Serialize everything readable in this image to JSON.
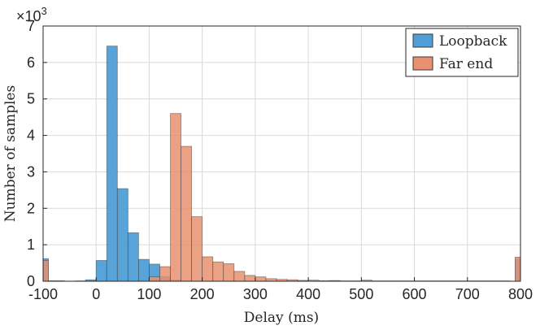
{
  "chart_data": {
    "type": "bar",
    "xlabel": "Delay (ms)",
    "ylabel": "Number of samples",
    "exponent_label": "×10",
    "exponent_power": "3",
    "xlim": [
      -100,
      800
    ],
    "ylim": [
      0,
      7
    ],
    "y_scale_factor": 1000,
    "xticks": [
      "-100",
      "0",
      "100",
      "200",
      "300",
      "400",
      "500",
      "600",
      "700",
      "800"
    ],
    "yticks": [
      "0",
      "1",
      "2",
      "3",
      "4",
      "5",
      "6",
      "7"
    ],
    "grid": true,
    "legend_position": "top-right",
    "bin_width": 20,
    "series": [
      {
        "name": "Loopback",
        "color": "#0072BD",
        "fill": "#4F9FD6",
        "bins": [
          {
            "x0": -100,
            "x1": -90,
            "value": 620
          },
          {
            "x0": -90,
            "x1": -60,
            "value": 10
          },
          {
            "x0": -40,
            "x1": -20,
            "value": 10
          },
          {
            "x0": -20,
            "x1": 0,
            "value": 40
          },
          {
            "x0": 0,
            "x1": 20,
            "value": 570
          },
          {
            "x0": 20,
            "x1": 40,
            "value": 6450
          },
          {
            "x0": 40,
            "x1": 60,
            "value": 2540
          },
          {
            "x0": 60,
            "x1": 80,
            "value": 1330
          },
          {
            "x0": 80,
            "x1": 100,
            "value": 600
          },
          {
            "x0": 100,
            "x1": 120,
            "value": 470
          },
          {
            "x0": 120,
            "x1": 140,
            "value": 130
          },
          {
            "x0": 140,
            "x1": 160,
            "value": 30
          },
          {
            "x0": 160,
            "x1": 180,
            "value": 10
          },
          {
            "x0": 790,
            "x1": 800,
            "value": 610
          }
        ]
      },
      {
        "name": "Far end",
        "color": "#D95319",
        "fill": "#E8906F",
        "bins": [
          {
            "x0": -100,
            "x1": -90,
            "value": 570
          },
          {
            "x0": -90,
            "x1": -60,
            "value": 10
          },
          {
            "x0": 100,
            "x1": 120,
            "value": 120
          },
          {
            "x0": 120,
            "x1": 140,
            "value": 400
          },
          {
            "x0": 140,
            "x1": 160,
            "value": 4600
          },
          {
            "x0": 160,
            "x1": 180,
            "value": 3700
          },
          {
            "x0": 180,
            "x1": 200,
            "value": 1770
          },
          {
            "x0": 200,
            "x1": 220,
            "value": 670
          },
          {
            "x0": 220,
            "x1": 240,
            "value": 530
          },
          {
            "x0": 240,
            "x1": 260,
            "value": 480
          },
          {
            "x0": 260,
            "x1": 280,
            "value": 270
          },
          {
            "x0": 280,
            "x1": 300,
            "value": 160
          },
          {
            "x0": 300,
            "x1": 320,
            "value": 120
          },
          {
            "x0": 320,
            "x1": 340,
            "value": 70
          },
          {
            "x0": 340,
            "x1": 360,
            "value": 50
          },
          {
            "x0": 360,
            "x1": 380,
            "value": 40
          },
          {
            "x0": 380,
            "x1": 400,
            "value": 25
          },
          {
            "x0": 400,
            "x1": 420,
            "value": 30
          },
          {
            "x0": 420,
            "x1": 440,
            "value": 15
          },
          {
            "x0": 440,
            "x1": 460,
            "value": 20
          },
          {
            "x0": 460,
            "x1": 480,
            "value": 10
          },
          {
            "x0": 480,
            "x1": 500,
            "value": 10
          },
          {
            "x0": 500,
            "x1": 520,
            "value": 30
          },
          {
            "x0": 520,
            "x1": 540,
            "value": 10
          },
          {
            "x0": 540,
            "x1": 560,
            "value": 10
          },
          {
            "x0": 560,
            "x1": 580,
            "value": 10
          },
          {
            "x0": 580,
            "x1": 600,
            "value": 10
          },
          {
            "x0": 600,
            "x1": 620,
            "value": 10
          },
          {
            "x0": 620,
            "x1": 640,
            "value": 10
          },
          {
            "x0": 640,
            "x1": 660,
            "value": 10
          },
          {
            "x0": 660,
            "x1": 680,
            "value": 10
          },
          {
            "x0": 680,
            "x1": 700,
            "value": 10
          },
          {
            "x0": 700,
            "x1": 720,
            "value": 10
          },
          {
            "x0": 720,
            "x1": 740,
            "value": 10
          },
          {
            "x0": 740,
            "x1": 760,
            "value": 10
          },
          {
            "x0": 760,
            "x1": 780,
            "value": 10
          },
          {
            "x0": 790,
            "x1": 800,
            "value": 660
          }
        ]
      }
    ]
  }
}
